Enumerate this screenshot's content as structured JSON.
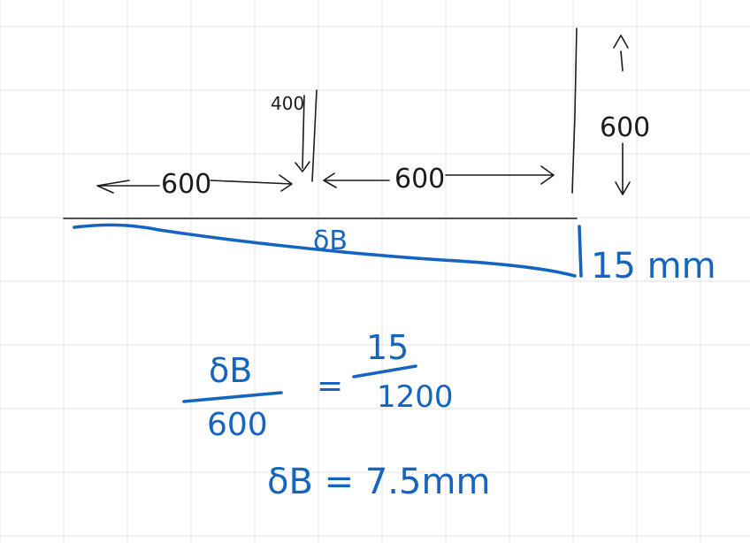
{
  "notes": {
    "load_label": "400",
    "left_span": "600",
    "right_span": "600",
    "height_label": "600",
    "midpoint_label": "δB",
    "end_deflection": "15 mm",
    "equation": {
      "lhs_num": "δB",
      "lhs_den": "600",
      "equals": "=",
      "rhs_num": "15",
      "rhs_den": "1200"
    },
    "result": "δB = 7.5mm"
  },
  "colors": {
    "grid": "#e3e3e3",
    "pencil": "#1c1c1c",
    "ink": "#1565c0"
  }
}
